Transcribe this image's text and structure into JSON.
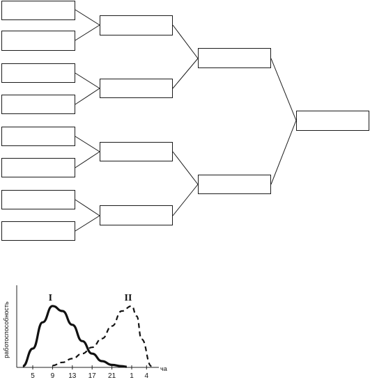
{
  "bracket": {
    "round1": [
      "",
      "",
      "",
      "",
      "",
      "",
      "",
      ""
    ],
    "round2": [
      "",
      "",
      "",
      ""
    ],
    "round3": [
      "",
      ""
    ],
    "final": [
      ""
    ]
  },
  "chart_data": {
    "type": "line",
    "title": "",
    "ylabel": "работоспособность",
    "xlabel": "час",
    "x_ticks": [
      "5",
      "9",
      "13",
      "17",
      "21",
      "1",
      "4"
    ],
    "series": [
      {
        "name": "I",
        "style": "solid",
        "x": [
          3,
          5,
          7,
          9,
          11,
          13,
          15,
          17,
          19,
          21,
          23,
          24
        ],
        "y": [
          0.02,
          0.3,
          0.72,
          0.98,
          0.9,
          0.68,
          0.42,
          0.22,
          0.1,
          0.04,
          0.02,
          0.01
        ]
      },
      {
        "name": "II",
        "style": "dashed",
        "x": [
          9,
          11,
          13,
          15,
          17,
          19,
          21,
          23,
          25,
          26,
          27,
          29
        ],
        "y": [
          0.03,
          0.08,
          0.14,
          0.22,
          0.32,
          0.46,
          0.66,
          0.9,
          0.98,
          0.82,
          0.45,
          0.02
        ]
      }
    ]
  }
}
